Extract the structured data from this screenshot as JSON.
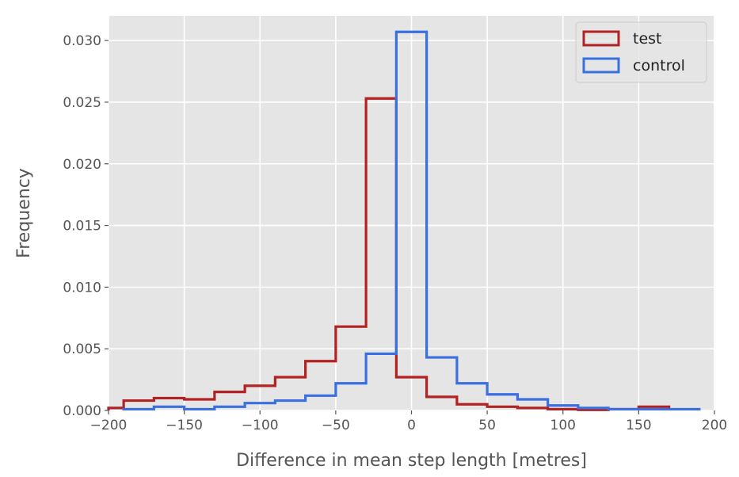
{
  "chart_data": {
    "type": "histogram",
    "style": "step",
    "xlabel": "Difference in mean step length [metres]",
    "ylabel": "Frequency",
    "xlim": [
      -200,
      200
    ],
    "ylim": [
      0,
      0.032
    ],
    "xticks": [
      -200,
      -150,
      -100,
      -50,
      0,
      50,
      100,
      150,
      200
    ],
    "xtick_labels": [
      "−200",
      "−150",
      "−100",
      "−50",
      "0",
      "50",
      "100",
      "150",
      "200"
    ],
    "yticks": [
      0,
      0.005,
      0.01,
      0.015,
      0.02,
      0.025,
      0.03
    ],
    "ytick_labels": [
      "0.000",
      "0.005",
      "0.010",
      "0.015",
      "0.020",
      "0.025",
      "0.030"
    ],
    "grid": true,
    "background": "#e5e5e5",
    "legend_position": "top-right",
    "series": [
      {
        "name": "test",
        "color": "#b22222",
        "bin_edges": [
          -200,
          -190,
          -170,
          -150,
          -130,
          -110,
          -90,
          -70,
          -50,
          -30,
          -10,
          10,
          30,
          50,
          70,
          90,
          110,
          130,
          150,
          170
        ],
        "values": [
          0.0002,
          0.0008,
          0.001,
          0.0009,
          0.0015,
          0.002,
          0.0027,
          0.004,
          0.0068,
          0.0253,
          0.0027,
          0.0011,
          0.0005,
          0.0003,
          0.0002,
          0.0001,
          5e-05,
          0.0001,
          0.0003
        ]
      },
      {
        "name": "control",
        "color": "#3a6fe0",
        "bin_edges": [
          -190,
          -170,
          -150,
          -130,
          -110,
          -90,
          -70,
          -50,
          -30,
          -10,
          10,
          30,
          50,
          70,
          90,
          110,
          130,
          150,
          170,
          190
        ],
        "values": [
          0.0001,
          0.0003,
          0.0001,
          0.0003,
          0.0006,
          0.0008,
          0.0012,
          0.0022,
          0.0046,
          0.0307,
          0.0043,
          0.0022,
          0.0013,
          0.0009,
          0.0004,
          0.0002,
          0.0001,
          0.0001,
          0.0001
        ]
      }
    ]
  }
}
